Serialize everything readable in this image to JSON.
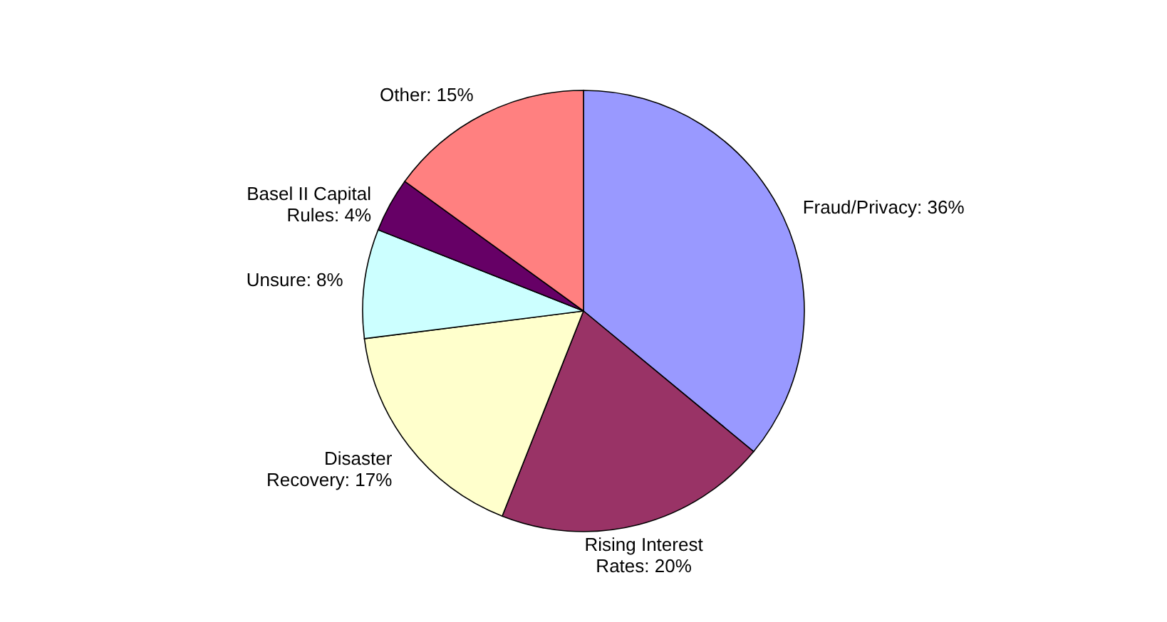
{
  "chart_data": {
    "type": "pie",
    "categories": [
      "Fraud/Privacy",
      "Rising Interest Rates",
      "Disaster Recovery",
      "Unsure",
      "Basel II Capital Rules",
      "Other"
    ],
    "values": [
      36,
      20,
      17,
      8,
      4,
      15
    ],
    "value_labels": [
      "36%",
      "20%",
      "17%",
      "8%",
      "4%",
      "15%"
    ],
    "colors": [
      "#9999ff",
      "#993366",
      "#ffffcc",
      "#ccffff",
      "#660066",
      "#ff8080"
    ],
    "legend": false
  }
}
